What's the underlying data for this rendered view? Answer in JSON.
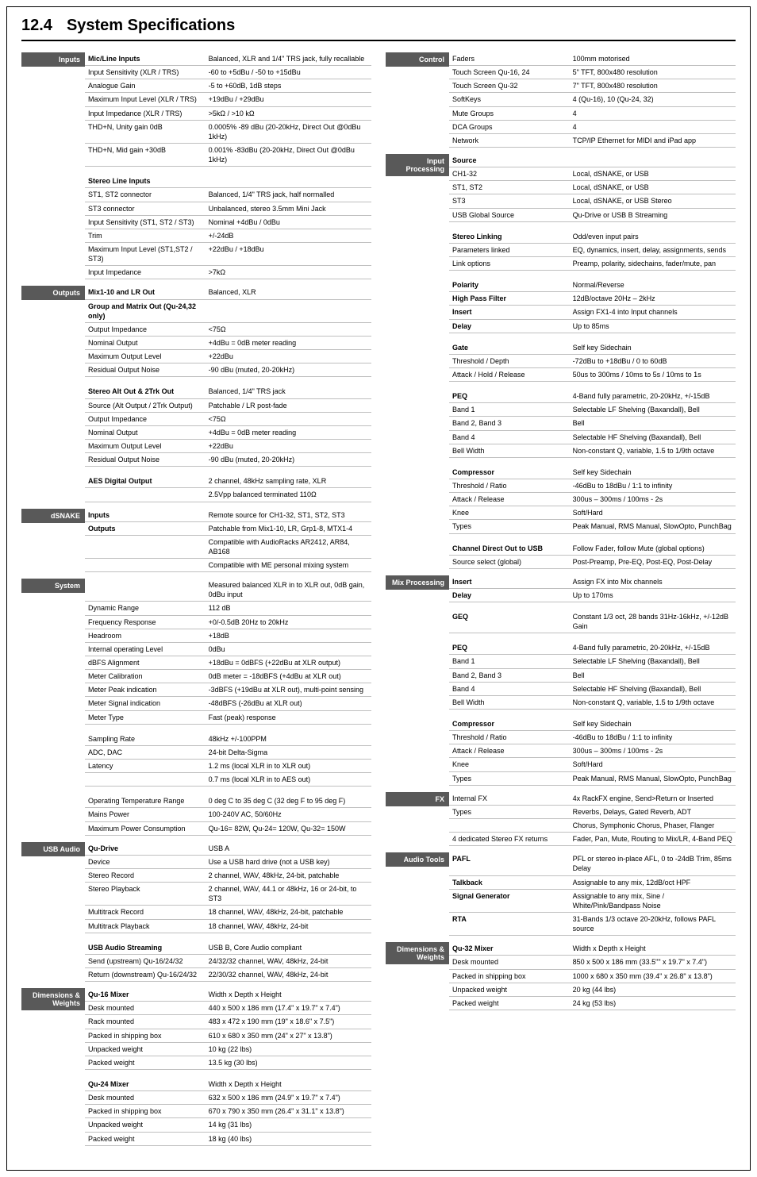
{
  "title": {
    "num": "12.4",
    "text": "System Specifications"
  },
  "colors": {
    "label_bg": "#595959",
    "label_fg": "#ffffff",
    "rule": "#bfbfbf"
  },
  "left": [
    {
      "label": "Inputs",
      "rows": [
        {
          "k": "Mic/Line Inputs",
          "v": "Balanced, XLR and 1/4\" TRS jack, fully recallable",
          "bold": true
        },
        {
          "k": "Input Sensitivity (XLR / TRS)",
          "v": "-60 to +5dBu / -50 to +15dBu"
        },
        {
          "k": "Analogue Gain",
          "v": "-5 to +60dB, 1dB steps"
        },
        {
          "k": "Maximum Input Level (XLR / TRS)",
          "v": "+19dBu / +29dBu"
        },
        {
          "k": "Input Impedance (XLR / TRS)",
          "v": ">5kΩ / >10 kΩ"
        },
        {
          "k": "THD+N, Unity gain 0dB",
          "v": "0.0005% -89 dBu (20-20kHz, Direct Out @0dBu 1kHz)"
        },
        {
          "k": "THD+N, Mid gain +30dB",
          "v": "0.001% -83dBu (20-20kHz, Direct Out @0dBu 1kHz)"
        },
        {
          "gap": true
        },
        {
          "k": "Stereo Line Inputs",
          "v": "",
          "bold": true
        },
        {
          "k": "ST1, ST2 connector",
          "v": "Balanced, 1/4\" TRS jack, half normalled"
        },
        {
          "k": "ST3 connector",
          "v": "Unbalanced, stereo 3.5mm Mini Jack"
        },
        {
          "k": "Input Sensitivity (ST1, ST2 / ST3)",
          "v": "Nominal +4dBu / 0dBu"
        },
        {
          "k": "Trim",
          "v": "+/-24dB"
        },
        {
          "k": "Maximum Input Level (ST1,ST2 / ST3)",
          "v": "+22dBu / +18dBu"
        },
        {
          "k": "Input Impedance",
          "v": ">7kΩ"
        }
      ]
    },
    {
      "label": "Outputs",
      "rows": [
        {
          "k": "Mix1-10 and LR Out",
          "v": "Balanced, XLR",
          "bold": true
        },
        {
          "k": "Group and Matrix Out (Qu-24,32 only)",
          "v": "",
          "bold": true
        },
        {
          "k": "Output Impedance",
          "v": "<75Ω"
        },
        {
          "k": "Nominal Output",
          "v": "+4dBu = 0dB meter reading"
        },
        {
          "k": "Maximum Output Level",
          "v": "+22dBu"
        },
        {
          "k": "Residual Output Noise",
          "v": "-90 dBu (muted, 20-20kHz)"
        },
        {
          "gap": true
        },
        {
          "k": "Stereo Alt Out & 2Trk Out",
          "v": "Balanced, 1/4\" TRS jack",
          "bold": true
        },
        {
          "k": "Source (Alt Output / 2Trk Output)",
          "v": "Patchable / LR post-fade"
        },
        {
          "k": "Output Impedance",
          "v": "<75Ω"
        },
        {
          "k": "Nominal Output",
          "v": "+4dBu = 0dB meter reading"
        },
        {
          "k": "Maximum Output Level",
          "v": "+22dBu"
        },
        {
          "k": "Residual Output Noise",
          "v": "-90 dBu (muted, 20-20kHz)"
        },
        {
          "gap": true
        },
        {
          "k": "AES Digital Output",
          "v": "2 channel, 48kHz sampling rate, XLR",
          "bold": true
        },
        {
          "k": "",
          "v": "2.5Vpp balanced terminated 110Ω"
        }
      ]
    },
    {
      "label": "dSNAKE",
      "rows": [
        {
          "k": "Inputs",
          "v": "Remote source for CH1-32, ST1, ST2, ST3",
          "bold": true
        },
        {
          "k": "Outputs",
          "v": "Patchable from Mix1-10, LR, Grp1-8, MTX1-4",
          "bold": true
        },
        {
          "k": "",
          "v": "Compatible with AudioRacks AR2412, AR84, AB168"
        },
        {
          "k": "",
          "v": "Compatible with ME personal mixing system"
        }
      ]
    },
    {
      "label": "System",
      "rows": [
        {
          "k": "",
          "v": "Measured balanced XLR in to XLR out, 0dB gain, 0dBu input"
        },
        {
          "k": "Dynamic Range",
          "v": "112 dB"
        },
        {
          "k": "Frequency Response",
          "v": "+0/-0.5dB 20Hz to 20kHz"
        },
        {
          "k": "Headroom",
          "v": "+18dB"
        },
        {
          "k": "Internal operating Level",
          "v": "0dBu"
        },
        {
          "k": "dBFS Alignment",
          "v": "+18dBu = 0dBFS (+22dBu at XLR output)"
        },
        {
          "k": "Meter Calibration",
          "v": "0dB meter = -18dBFS (+4dBu at XLR out)"
        },
        {
          "k": "Meter Peak indication",
          "v": "-3dBFS (+19dBu at XLR out), multi-point sensing"
        },
        {
          "k": "Meter Signal indication",
          "v": "-48dBFS (-26dBu at XLR out)"
        },
        {
          "k": "Meter Type",
          "v": "Fast (peak) response"
        },
        {
          "gap": true
        },
        {
          "k": "Sampling Rate",
          "v": "48kHz +/-100PPM"
        },
        {
          "k": "ADC, DAC",
          "v": "24-bit Delta-Sigma"
        },
        {
          "k": "Latency",
          "v": "1.2 ms (local XLR in to XLR out)"
        },
        {
          "k": "",
          "v": "0.7 ms (local XLR in to AES out)"
        },
        {
          "gap": true
        },
        {
          "k": "Operating Temperature Range",
          "v": "0 deg C to 35 deg C  (32 deg F to 95 deg F)"
        },
        {
          "k": "Mains Power",
          "v": "100-240V AC, 50/60Hz"
        },
        {
          "k": "Maximum Power Consumption",
          "v": "Qu-16= 82W, Qu-24= 120W, Qu-32= 150W"
        }
      ]
    },
    {
      "label": "USB Audio",
      "rows": [
        {
          "k": "Qu-Drive",
          "v": "USB A",
          "bold": true
        },
        {
          "k": "Device",
          "v": "Use a USB hard drive (not a USB key)"
        },
        {
          "k": "Stereo Record",
          "v": "2 channel, WAV, 48kHz, 24-bit, patchable"
        },
        {
          "k": "Stereo Playback",
          "v": "2 channel, WAV, 44.1 or 48kHz, 16 or 24-bit, to ST3"
        },
        {
          "k": "Multitrack Record",
          "v": "18 channel, WAV, 48kHz, 24-bit, patchable"
        },
        {
          "k": "Multitrack Playback",
          "v": "18 channel, WAV, 48kHz, 24-bit"
        },
        {
          "gap": true
        },
        {
          "k": "USB Audio Streaming",
          "v": "USB B, Core Audio compliant",
          "bold": true
        },
        {
          "k": "Send (upstream) Qu-16/24/32",
          "v": "24/32/32 channel, WAV, 48kHz, 24-bit"
        },
        {
          "k": "Return (downstream) Qu-16/24/32",
          "v": "22/30/32 channel, WAV, 48kHz, 24-bit"
        }
      ]
    },
    {
      "label": "Dimensions & Weights",
      "rows": [
        {
          "k": "Qu-16 Mixer",
          "v": "Width x Depth x Height",
          "bold": true
        },
        {
          "k": "Desk mounted",
          "v": "440 x 500 x 186 mm (17.4\" x 19.7\" x 7.4\")"
        },
        {
          "k": "Rack mounted",
          "v": "483 x 472 x 190 mm (19\" x 18.6\" x 7.5\")"
        },
        {
          "k": "Packed in shipping box",
          "v": "610 x 680 x 350 mm (24\" x 27\" x 13.8\")"
        },
        {
          "k": "Unpacked weight",
          "v": "10 kg (22 lbs)"
        },
        {
          "k": "Packed weight",
          "v": "13.5 kg (30 lbs)"
        },
        {
          "gap": true
        },
        {
          "k": "Qu-24 Mixer",
          "v": "Width x Depth x Height",
          "bold": true
        },
        {
          "k": "Desk mounted",
          "v": "632 x 500 x 186 mm (24.9\" x 19.7\" x 7.4\")"
        },
        {
          "k": "Packed in shipping box",
          "v": "670 x 790 x 350 mm (26.4\" x 31.1\" x 13.8\")"
        },
        {
          "k": "Unpacked weight",
          "v": "14 kg (31 lbs)"
        },
        {
          "k": "Packed weight",
          "v": "18 kg (40 lbs)"
        }
      ]
    }
  ],
  "right": [
    {
      "label": "Control",
      "rows": [
        {
          "k": "Faders",
          "v": "100mm motorised"
        },
        {
          "k": "Touch Screen Qu-16, 24",
          "v": "5\" TFT, 800x480 resolution"
        },
        {
          "k": "Touch Screen Qu-32",
          "v": "7\" TFT, 800x480 resolution"
        },
        {
          "k": "SoftKeys",
          "v": "4 (Qu-16), 10 (Qu-24, 32)"
        },
        {
          "k": "Mute Groups",
          "v": "4"
        },
        {
          "k": "DCA Groups",
          "v": "4"
        },
        {
          "k": "Network",
          "v": "TCP/IP Ethernet for MIDI and iPad app"
        }
      ]
    },
    {
      "label": "Input Processing",
      "rows": [
        {
          "k": "Source",
          "v": "",
          "bold": true
        },
        {
          "k": "CH1-32",
          "v": "Local, dSNAKE, or USB"
        },
        {
          "k": "ST1, ST2",
          "v": "Local, dSNAKE, or USB"
        },
        {
          "k": "ST3",
          "v": "Local, dSNAKE, or USB Stereo"
        },
        {
          "k": "USB Global Source",
          "v": "Qu-Drive or USB B Streaming"
        },
        {
          "gap": true
        },
        {
          "k": "Stereo Linking",
          "v": "Odd/even input pairs",
          "bold": true
        },
        {
          "k": "Parameters linked",
          "v": "EQ, dynamics, insert, delay, assignments, sends"
        },
        {
          "k": "Link options",
          "v": "Preamp, polarity, sidechains, fader/mute, pan"
        },
        {
          "gap": true
        },
        {
          "k": "Polarity",
          "v": "Normal/Reverse",
          "bold": true
        },
        {
          "k": "High Pass Filter",
          "v": "12dB/octave 20Hz – 2kHz",
          "bold": true
        },
        {
          "k": "Insert",
          "v": "Assign FX1-4 into Input channels",
          "bold": true
        },
        {
          "k": "Delay",
          "v": "Up to 85ms",
          "bold": true
        },
        {
          "gap": true
        },
        {
          "k": "Gate",
          "v": "Self key Sidechain",
          "bold": true
        },
        {
          "k": "Threshold / Depth",
          "v": "-72dBu to +18dBu / 0 to 60dB"
        },
        {
          "k": "Attack / Hold / Release",
          "v": "50us to 300ms / 10ms to 5s / 10ms to 1s"
        },
        {
          "gap": true
        },
        {
          "k": "PEQ",
          "v": "4-Band fully parametric, 20-20kHz, +/-15dB",
          "bold": true
        },
        {
          "k": "Band 1",
          "v": "Selectable LF Shelving (Baxandall), Bell"
        },
        {
          "k": "Band 2, Band 3",
          "v": "Bell"
        },
        {
          "k": "Band 4",
          "v": "Selectable HF Shelving (Baxandall), Bell"
        },
        {
          "k": "Bell Width",
          "v": "Non-constant Q, variable, 1.5 to 1/9th octave"
        },
        {
          "gap": true
        },
        {
          "k": "Compressor",
          "v": "Self key Sidechain",
          "bold": true
        },
        {
          "k": "Threshold / Ratio",
          "v": "-46dBu to 18dBu / 1:1 to infinity"
        },
        {
          "k": "Attack / Release",
          "v": "300us – 300ms / 100ms - 2s"
        },
        {
          "k": "Knee",
          "v": "Soft/Hard"
        },
        {
          "k": "Types",
          "v": "Peak Manual, RMS Manual, SlowOpto, PunchBag"
        },
        {
          "gap": true
        },
        {
          "k": "Channel Direct Out to USB",
          "v": "Follow Fader, follow Mute (global options)",
          "bold": true
        },
        {
          "k": "Source select (global)",
          "v": "Post-Preamp, Pre-EQ, Post-EQ, Post-Delay"
        }
      ]
    },
    {
      "label": "Mix Processing",
      "rows": [
        {
          "k": "Insert",
          "v": "Assign FX into Mix channels",
          "bold": true
        },
        {
          "k": "Delay",
          "v": "Up to 170ms",
          "bold": true
        },
        {
          "gap": true
        },
        {
          "k": "GEQ",
          "v": "Constant 1/3 oct, 28 bands 31Hz-16kHz, +/-12dB Gain",
          "bold": true
        },
        {
          "gap": true
        },
        {
          "k": "PEQ",
          "v": "4-Band fully parametric, 20-20kHz, +/-15dB",
          "bold": true
        },
        {
          "k": "Band 1",
          "v": "Selectable LF Shelving (Baxandall), Bell"
        },
        {
          "k": "Band 2, Band 3",
          "v": "Bell"
        },
        {
          "k": "Band 4",
          "v": "Selectable HF Shelving (Baxandall), Bell"
        },
        {
          "k": "Bell Width",
          "v": "Non-constant Q, variable, 1.5 to 1/9th octave"
        },
        {
          "gap": true
        },
        {
          "k": "Compressor",
          "v": "Self key Sidechain",
          "bold": true
        },
        {
          "k": "Threshold / Ratio",
          "v": "-46dBu to 18dBu / 1:1 to infinity"
        },
        {
          "k": "Attack / Release",
          "v": "300us – 300ms / 100ms - 2s"
        },
        {
          "k": "Knee",
          "v": "Soft/Hard"
        },
        {
          "k": "Types",
          "v": "Peak Manual, RMS Manual, SlowOpto, PunchBag"
        }
      ]
    },
    {
      "label": "FX",
      "rows": [
        {
          "k": "Internal FX",
          "v": "4x RackFX engine, Send>Return or Inserted"
        },
        {
          "k": "Types",
          "v": "Reverbs, Delays, Gated Reverb, ADT"
        },
        {
          "k": "",
          "v": "Chorus, Symphonic Chorus, Phaser, Flanger"
        },
        {
          "k": "4 dedicated Stereo FX returns",
          "v": "Fader, Pan, Mute, Routing to Mix/LR, 4-Band PEQ"
        }
      ]
    },
    {
      "label": "Audio Tools",
      "rows": [
        {
          "k": "PAFL",
          "v": "PFL or stereo in-place AFL, 0 to -24dB Trim, 85ms Delay",
          "bold": true
        },
        {
          "k": "Talkback",
          "v": "Assignable to any mix, 12dB/oct HPF",
          "bold": true
        },
        {
          "k": "Signal Generator",
          "v": "Assignable to any mix, Sine / White/Pink/Bandpass Noise",
          "bold": true
        },
        {
          "k": "RTA",
          "v": "31-Bands 1/3 octave 20-20kHz, follows PAFL source",
          "bold": true
        }
      ]
    },
    {
      "label": "Dimensions & Weights",
      "rows": [
        {
          "k": "Qu-32 Mixer",
          "v": "Width x Depth x Height",
          "bold": true
        },
        {
          "k": "Desk mounted",
          "v": "850 x 500 x 186 mm (33.5\"\" x 19.7\" x 7.4\")"
        },
        {
          "k": "Packed in shipping box",
          "v": "1000 x 680 x 350 mm (39.4\" x 26.8\" x 13.8\")"
        },
        {
          "k": "Unpacked weight",
          "v": "20 kg (44 lbs)"
        },
        {
          "k": "Packed weight",
          "v": "24 kg (53 lbs)"
        }
      ]
    }
  ]
}
